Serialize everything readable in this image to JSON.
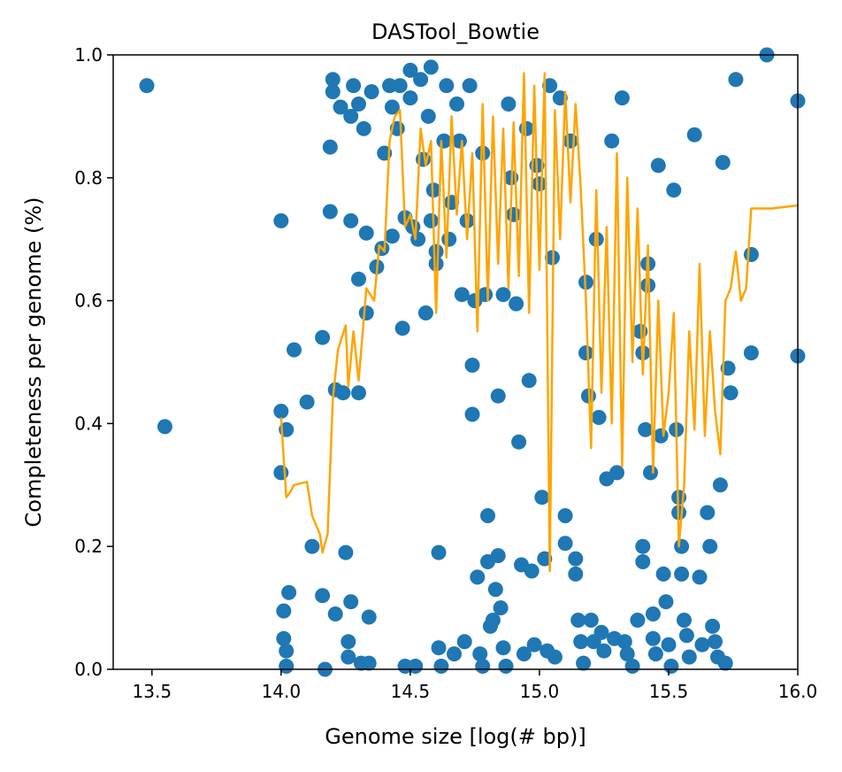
{
  "chart_data": {
    "type": "scatter",
    "title": "DASTool_Bowtie",
    "xlabel": "Genome size [log(# bp)]",
    "ylabel": "Completeness per genome (%)",
    "xlim": [
      13.35,
      16.0
    ],
    "ylim": [
      0.0,
      1.0
    ],
    "x_ticks": [
      13.5,
      14.0,
      14.5,
      15.0,
      15.5,
      16.0
    ],
    "x_tick_labels": [
      "13.5",
      "14.0",
      "14.5",
      "15.0",
      "15.5",
      "16.0"
    ],
    "y_ticks": [
      0.0,
      0.2,
      0.4,
      0.6,
      0.8,
      1.0
    ],
    "y_tick_labels": [
      "0.0",
      "0.2",
      "0.4",
      "0.6",
      "0.8",
      "1.0"
    ],
    "grid": false,
    "series": [
      {
        "kind": "scatter",
        "color": "#1f77b4",
        "points": [
          [
            13.48,
            0.95
          ],
          [
            13.55,
            0.395
          ],
          [
            14.0,
            0.73
          ],
          [
            14.0,
            0.42
          ],
          [
            14.0,
            0.32
          ],
          [
            14.02,
            0.39
          ],
          [
            14.01,
            0.095
          ],
          [
            14.01,
            0.05
          ],
          [
            14.02,
            0.03
          ],
          [
            14.02,
            0.005
          ],
          [
            14.03,
            0.125
          ],
          [
            14.05,
            0.52
          ],
          [
            14.1,
            0.435
          ],
          [
            14.12,
            0.2
          ],
          [
            14.16,
            0.54
          ],
          [
            14.16,
            0.12
          ],
          [
            14.17,
            0.0
          ],
          [
            14.19,
            0.745
          ],
          [
            14.19,
            0.85
          ],
          [
            14.2,
            0.96
          ],
          [
            14.2,
            0.94
          ],
          [
            14.21,
            0.09
          ],
          [
            14.21,
            0.455
          ],
          [
            14.23,
            0.915
          ],
          [
            14.24,
            0.45
          ],
          [
            14.25,
            0.19
          ],
          [
            14.26,
            0.045
          ],
          [
            14.27,
            0.11
          ],
          [
            14.26,
            0.02
          ],
          [
            14.27,
            0.73
          ],
          [
            14.27,
            0.9
          ],
          [
            14.28,
            0.95
          ],
          [
            14.3,
            0.635
          ],
          [
            14.3,
            0.45
          ],
          [
            14.3,
            0.92
          ],
          [
            14.31,
            0.01
          ],
          [
            14.32,
            0.88
          ],
          [
            14.33,
            0.71
          ],
          [
            14.33,
            0.58
          ],
          [
            14.34,
            0.085
          ],
          [
            14.34,
            0.01
          ],
          [
            14.35,
            0.94
          ],
          [
            14.37,
            0.655
          ],
          [
            14.39,
            0.685
          ],
          [
            14.4,
            0.84
          ],
          [
            14.42,
            0.95
          ],
          [
            14.43,
            0.915
          ],
          [
            14.43,
            0.705
          ],
          [
            14.45,
            0.88
          ],
          [
            14.46,
            0.95
          ],
          [
            14.47,
            0.555
          ],
          [
            14.48,
            0.735
          ],
          [
            14.48,
            0.005
          ],
          [
            14.5,
            0.975
          ],
          [
            14.5,
            0.93
          ],
          [
            14.51,
            0.72
          ],
          [
            14.52,
            0.005
          ],
          [
            14.53,
            0.7
          ],
          [
            14.54,
            0.96
          ],
          [
            14.55,
            0.83
          ],
          [
            14.56,
            0.58
          ],
          [
            14.57,
            0.9
          ],
          [
            14.58,
            0.98
          ],
          [
            14.58,
            0.73
          ],
          [
            14.59,
            0.78
          ],
          [
            14.6,
            0.68
          ],
          [
            14.6,
            0.66
          ],
          [
            14.61,
            0.19
          ],
          [
            14.61,
            0.035
          ],
          [
            14.62,
            0.005
          ],
          [
            14.63,
            0.86
          ],
          [
            14.64,
            0.95
          ],
          [
            14.65,
            0.7
          ],
          [
            14.66,
            0.76
          ],
          [
            14.67,
            0.025
          ],
          [
            14.68,
            0.92
          ],
          [
            14.69,
            0.86
          ],
          [
            14.7,
            0.61
          ],
          [
            14.71,
            0.045
          ],
          [
            14.72,
            0.73
          ],
          [
            14.73,
            0.95
          ],
          [
            14.74,
            0.495
          ],
          [
            14.74,
            0.415
          ],
          [
            14.75,
            0.6
          ],
          [
            14.76,
            0.15
          ],
          [
            14.77,
            0.025
          ],
          [
            14.78,
            0.84
          ],
          [
            14.78,
            0.005
          ],
          [
            14.79,
            0.61
          ],
          [
            14.8,
            0.25
          ],
          [
            14.8,
            0.175
          ],
          [
            14.81,
            0.07
          ],
          [
            14.82,
            0.08
          ],
          [
            14.83,
            0.13
          ],
          [
            14.84,
            0.445
          ],
          [
            14.84,
            0.185
          ],
          [
            14.85,
            0.1
          ],
          [
            14.86,
            0.61
          ],
          [
            14.86,
            0.035
          ],
          [
            14.87,
            0.005
          ],
          [
            14.88,
            0.92
          ],
          [
            14.89,
            0.8
          ],
          [
            14.9,
            0.74
          ],
          [
            14.91,
            0.595
          ],
          [
            14.92,
            0.37
          ],
          [
            14.93,
            0.17
          ],
          [
            14.94,
            0.025
          ],
          [
            14.95,
            0.88
          ],
          [
            14.96,
            0.47
          ],
          [
            14.97,
            0.16
          ],
          [
            14.98,
            0.04
          ],
          [
            14.99,
            0.82
          ],
          [
            15.0,
            0.79
          ],
          [
            15.01,
            0.28
          ],
          [
            15.02,
            0.18
          ],
          [
            15.03,
            0.03
          ],
          [
            15.04,
            0.95
          ],
          [
            15.05,
            0.67
          ],
          [
            15.06,
            0.02
          ],
          [
            15.08,
            0.93
          ],
          [
            15.1,
            0.25
          ],
          [
            15.1,
            0.205
          ],
          [
            15.12,
            0.86
          ],
          [
            15.14,
            0.18
          ],
          [
            15.14,
            0.155
          ],
          [
            15.15,
            0.08
          ],
          [
            15.16,
            0.045
          ],
          [
            15.17,
            0.01
          ],
          [
            15.18,
            0.63
          ],
          [
            15.18,
            0.515
          ],
          [
            15.19,
            0.445
          ],
          [
            15.2,
            0.08
          ],
          [
            15.21,
            0.045
          ],
          [
            15.22,
            0.7
          ],
          [
            15.23,
            0.41
          ],
          [
            15.24,
            0.06
          ],
          [
            15.25,
            0.03
          ],
          [
            15.26,
            0.31
          ],
          [
            15.28,
            0.86
          ],
          [
            15.29,
            0.05
          ],
          [
            15.3,
            0.32
          ],
          [
            15.32,
            0.93
          ],
          [
            15.33,
            0.045
          ],
          [
            15.34,
            0.025
          ],
          [
            15.36,
            0.005
          ],
          [
            15.38,
            0.08
          ],
          [
            15.39,
            0.55
          ],
          [
            15.4,
            0.515
          ],
          [
            15.4,
            0.2
          ],
          [
            15.4,
            0.175
          ],
          [
            15.41,
            0.39
          ],
          [
            15.42,
            0.66
          ],
          [
            15.42,
            0.625
          ],
          [
            15.43,
            0.32
          ],
          [
            15.44,
            0.09
          ],
          [
            15.44,
            0.05
          ],
          [
            15.45,
            0.025
          ],
          [
            15.46,
            0.82
          ],
          [
            15.47,
            0.38
          ],
          [
            15.48,
            0.155
          ],
          [
            15.49,
            0.11
          ],
          [
            15.5,
            0.04
          ],
          [
            15.51,
            0.005
          ],
          [
            15.52,
            0.78
          ],
          [
            15.53,
            0.39
          ],
          [
            15.54,
            0.28
          ],
          [
            15.54,
            0.255
          ],
          [
            15.55,
            0.2
          ],
          [
            15.55,
            0.155
          ],
          [
            15.56,
            0.08
          ],
          [
            15.57,
            0.055
          ],
          [
            15.58,
            0.02
          ],
          [
            15.6,
            0.87
          ],
          [
            15.62,
            0.15
          ],
          [
            15.63,
            0.04
          ],
          [
            15.65,
            0.255
          ],
          [
            15.66,
            0.2
          ],
          [
            15.67,
            0.07
          ],
          [
            15.68,
            0.045
          ],
          [
            15.69,
            0.02
          ],
          [
            15.7,
            0.3
          ],
          [
            15.71,
            0.825
          ],
          [
            15.72,
            0.01
          ],
          [
            15.73,
            0.49
          ],
          [
            15.74,
            0.45
          ],
          [
            15.76,
            0.96
          ],
          [
            15.82,
            0.675
          ],
          [
            15.82,
            0.515
          ],
          [
            15.88,
            1.0
          ],
          [
            16.0,
            0.925
          ],
          [
            16.0,
            0.51
          ]
        ]
      },
      {
        "kind": "line",
        "color": "#ffa500",
        "points": [
          [
            14.0,
            0.41
          ],
          [
            14.02,
            0.28
          ],
          [
            14.03,
            0.285
          ],
          [
            14.05,
            0.3
          ],
          [
            14.1,
            0.305
          ],
          [
            14.12,
            0.25
          ],
          [
            14.15,
            0.22
          ],
          [
            14.16,
            0.19
          ],
          [
            14.18,
            0.22
          ],
          [
            14.2,
            0.44
          ],
          [
            14.22,
            0.52
          ],
          [
            14.25,
            0.56
          ],
          [
            14.26,
            0.46
          ],
          [
            14.28,
            0.55
          ],
          [
            14.3,
            0.47
          ],
          [
            14.33,
            0.62
          ],
          [
            14.36,
            0.6
          ],
          [
            14.38,
            0.69
          ],
          [
            14.4,
            0.68
          ],
          [
            14.42,
            0.86
          ],
          [
            14.44,
            0.9
          ],
          [
            14.46,
            0.91
          ],
          [
            14.48,
            0.72
          ],
          [
            14.5,
            0.74
          ],
          [
            14.52,
            0.7
          ],
          [
            14.54,
            0.88
          ],
          [
            14.56,
            0.82
          ],
          [
            14.58,
            0.86
          ],
          [
            14.6,
            0.58
          ],
          [
            14.62,
            0.86
          ],
          [
            14.64,
            0.67
          ],
          [
            14.66,
            0.9
          ],
          [
            14.68,
            0.74
          ],
          [
            14.7,
            0.86
          ],
          [
            14.72,
            0.7
          ],
          [
            14.74,
            0.84
          ],
          [
            14.76,
            0.55
          ],
          [
            14.78,
            0.92
          ],
          [
            14.8,
            0.6
          ],
          [
            14.82,
            0.9
          ],
          [
            14.84,
            0.66
          ],
          [
            14.86,
            0.88
          ],
          [
            14.88,
            0.62
          ],
          [
            14.9,
            0.89
          ],
          [
            14.92,
            0.64
          ],
          [
            14.94,
            0.97
          ],
          [
            14.96,
            0.58
          ],
          [
            14.98,
            0.95
          ],
          [
            15.0,
            0.65
          ],
          [
            15.02,
            0.97
          ],
          [
            15.04,
            0.16
          ],
          [
            15.06,
            0.91
          ],
          [
            15.08,
            0.7
          ],
          [
            15.1,
            0.94
          ],
          [
            15.12,
            0.76
          ],
          [
            15.14,
            0.92
          ],
          [
            15.16,
            0.78
          ],
          [
            15.18,
            0.6
          ],
          [
            15.2,
            0.36
          ],
          [
            15.22,
            0.78
          ],
          [
            15.24,
            0.45
          ],
          [
            15.26,
            0.72
          ],
          [
            15.28,
            0.4
          ],
          [
            15.3,
            0.84
          ],
          [
            15.32,
            0.33
          ],
          [
            15.34,
            0.8
          ],
          [
            15.36,
            0.5
          ],
          [
            15.38,
            0.75
          ],
          [
            15.4,
            0.48
          ],
          [
            15.42,
            0.69
          ],
          [
            15.44,
            0.32
          ],
          [
            15.46,
            0.6
          ],
          [
            15.48,
            0.38
          ],
          [
            15.5,
            0.45
          ],
          [
            15.52,
            0.58
          ],
          [
            15.54,
            0.2
          ],
          [
            15.56,
            0.3
          ],
          [
            15.58,
            0.55
          ],
          [
            15.6,
            0.39
          ],
          [
            15.62,
            0.66
          ],
          [
            15.64,
            0.38
          ],
          [
            15.66,
            0.55
          ],
          [
            15.68,
            0.42
          ],
          [
            15.7,
            0.35
          ],
          [
            15.72,
            0.6
          ],
          [
            15.74,
            0.62
          ],
          [
            15.76,
            0.68
          ],
          [
            15.78,
            0.6
          ],
          [
            15.8,
            0.62
          ],
          [
            15.82,
            0.75
          ],
          [
            15.9,
            0.75
          ],
          [
            16.0,
            0.755
          ]
        ]
      }
    ]
  }
}
